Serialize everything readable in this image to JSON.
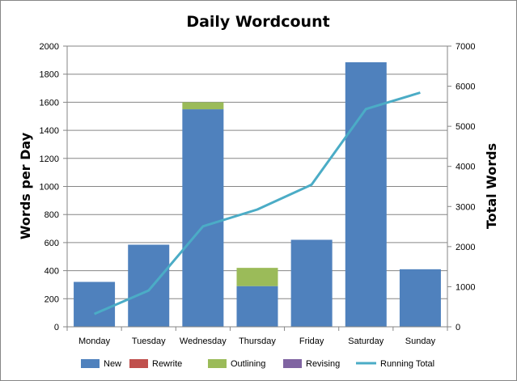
{
  "chart_data": {
    "type": "bar",
    "title": "Daily Wordcount",
    "ylabel": "Words per Day",
    "y2label": "Total Words",
    "categories": [
      "Monday",
      "Tuesday",
      "Wednesday",
      "Thursday",
      "Friday",
      "Saturday",
      "Sunday"
    ],
    "stacked": true,
    "ylim": [
      0,
      2000
    ],
    "y2lim": [
      0,
      7000
    ],
    "yticks": [
      "0",
      "200",
      "400",
      "600",
      "800",
      "1000",
      "1200",
      "1400",
      "1600",
      "1800",
      "2000"
    ],
    "y2ticks": [
      "0",
      "1000",
      "2000",
      "3000",
      "4000",
      "5000",
      "6000",
      "7000"
    ],
    "grid": true,
    "legend_position": "bottom",
    "series": [
      {
        "name": "New",
        "kind": "bar",
        "axis": "left",
        "color": "#4F81BD",
        "values": [
          320,
          585,
          1550,
          290,
          620,
          1885,
          410
        ]
      },
      {
        "name": "Rewrite",
        "kind": "bar",
        "axis": "left",
        "color": "#C0504D",
        "values": [
          0,
          0,
          0,
          0,
          0,
          0,
          0
        ]
      },
      {
        "name": "Outlining",
        "kind": "bar",
        "axis": "left",
        "color": "#9BBB59",
        "values": [
          0,
          0,
          50,
          130,
          0,
          0,
          0
        ]
      },
      {
        "name": "Revising",
        "kind": "bar",
        "axis": "left",
        "color": "#8064A2",
        "values": [
          0,
          0,
          0,
          0,
          0,
          0,
          0
        ]
      },
      {
        "name": "Running Total",
        "kind": "line",
        "axis": "right",
        "color": "#4BACC6",
        "values": [
          320,
          905,
          2505,
          2925,
          3545,
          5430,
          5840
        ]
      }
    ]
  }
}
